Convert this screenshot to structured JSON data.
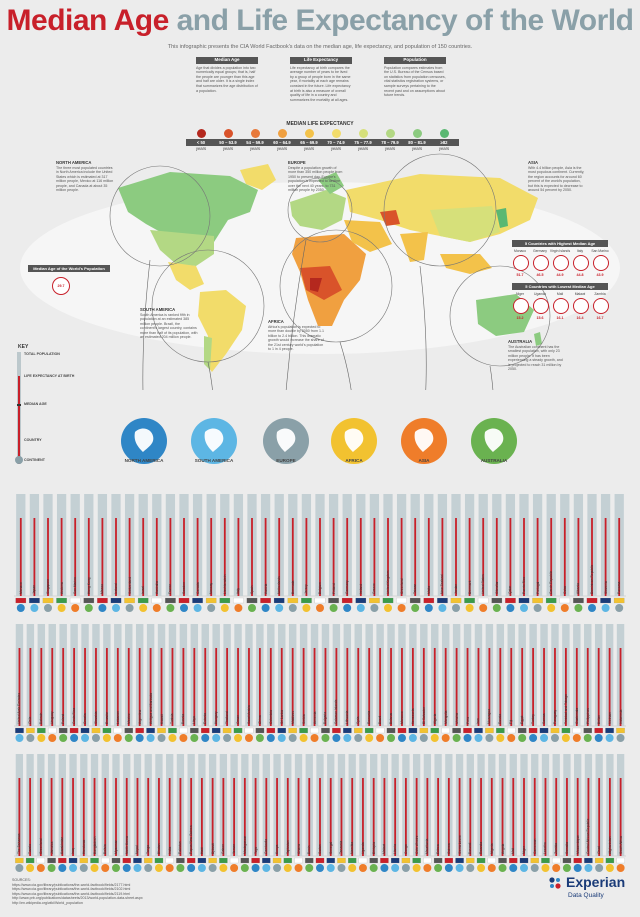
{
  "title_part1": "Median Age",
  "title_part2": "and Life Expectancy of the World",
  "intro": "This infographic presents the CIA World Factbook's data on the median age, life expectancy, and population of 150 countries.",
  "definitions": [
    {
      "heading": "Median Age",
      "text": "Age that divides a population into two numerically equal groups; that is, half the people are younger than this age and half are older. It is a single index that summarizes the age distribution of a population."
    },
    {
      "heading": "Life Expectancy",
      "text": "Life expectancy at birth compares the average number of years to be lived by a group of people born in the same year, if mortality at each age remains constant in the future. Life expectancy at birth is also a measure of overall quality of life in a country and summarizes the mortality at all ages."
    },
    {
      "heading": "Population",
      "text": "Population compares estimates from the U.S. Bureau of the Census based on statistics from population censuses, vital statistics registration systems, or sample surveys pertaining to the recent past and on assumptions about future trends."
    }
  ],
  "legend": {
    "title": "MEDIAN LIFE EXPECTANCY",
    "items": [
      {
        "label": "< 50",
        "unit": "years",
        "color": "#b4281e"
      },
      {
        "label": "50 – 53.9",
        "unit": "years",
        "color": "#d9532a"
      },
      {
        "label": "54 – 59.9",
        "unit": "years",
        "color": "#e8793a"
      },
      {
        "label": "60 – 64.9",
        "unit": "years",
        "color": "#f0a040"
      },
      {
        "label": "65 – 69.9",
        "unit": "years",
        "color": "#f3c24a"
      },
      {
        "label": "70 – 74.9",
        "unit": "years",
        "color": "#f2dc6a"
      },
      {
        "label": "75 – 77.9",
        "unit": "years",
        "color": "#d6e07a"
      },
      {
        "label": "78 – 79.9",
        "unit": "years",
        "color": "#b3d884"
      },
      {
        "label": "80 – 81.9",
        "unit": "years",
        "color": "#8ccb80"
      },
      {
        "label": "≥82",
        "unit": "years",
        "color": "#5ab872"
      }
    ]
  },
  "regions": {
    "north_america": {
      "title": "NORTH AMERICA",
      "text": "The three most populated countries in North America include the United States which is estimated at 317 million people, Mexico at 116 million people, and Canada at about 35 million people."
    },
    "europe": {
      "title": "EUROPE",
      "text": "Despite a population growth of more than 350 million people from 1950 to present day, Europe's population is expected to decline over the next 40 years, to 731 million people by 2050."
    },
    "asia": {
      "title": "ASIA",
      "text": "With 4.4 billion people, Asia is the most populous continent. Currently, the region accounts for around 60 percent of the world's population, but this is expected to decrease to around 54 percent by 2050."
    },
    "south_america": {
      "title": "SOUTH AMERICA",
      "text": "South America is ranked fifth in population at an estimated 385 million people. Brazil, the continent's largest country, contains more than half of its population, with an estimated 204 million people."
    },
    "africa": {
      "title": "AFRICA",
      "text": "Africa's population is expected to more than double by 2050 from 1.1 billion to 2.4 billion. This dramatic growth would increase the share of the 21st century world's population to 1 in 4 people."
    },
    "australia": {
      "title": "AUSTRALIA",
      "text": "The Australian continent has the smallest population, with only 23 million people. It has been experiencing a steady growth, and is projected to reach 31 million by 2050."
    }
  },
  "world_median": {
    "label": "Median Age of the World's Population",
    "value": "29.7"
  },
  "highest_median": {
    "title": "5 Countries with Highest Median Age",
    "countries": [
      {
        "name": "Monaco",
        "value": "51.7"
      },
      {
        "name": "Germany",
        "value": "46.5"
      },
      {
        "name": "Virgin Islands",
        "value": "44.9"
      },
      {
        "name": "Italy",
        "value": "44.8"
      },
      {
        "name": "San Marino",
        "value": "43.9"
      }
    ]
  },
  "lowest_median": {
    "title": "5 Countries with Lowest Median Age",
    "countries": [
      {
        "name": "Niger",
        "value": "15.2"
      },
      {
        "name": "Uganda",
        "value": "15.6"
      },
      {
        "name": "Mali",
        "value": "16.1"
      },
      {
        "name": "Malawi",
        "value": "16.4"
      },
      {
        "name": "Zambia",
        "value": "16.7"
      }
    ]
  },
  "continents": [
    {
      "name": "NORTH AMERICA",
      "color": "#2f86c6"
    },
    {
      "name": "SOUTH AMERICA",
      "color": "#5db6e4"
    },
    {
      "name": "EUROPE",
      "color": "#8aa0a8"
    },
    {
      "name": "AFRICA",
      "color": "#f2c230"
    },
    {
      "name": "ASIA",
      "color": "#ef7d2a"
    },
    {
      "name": "AUSTRALIA",
      "color": "#6ab250"
    }
  ],
  "key": {
    "title": "KEY",
    "items": [
      "TOTAL POPULATION",
      "LIFE EXPECTANCY AT BIRTH",
      "MEDIAN AGE",
      "COUNTRY",
      "CONTINENT"
    ]
  },
  "chart_data": [
    {
      "type": "bar",
      "countries": [
        "Monaco",
        "Japan",
        "Singapore",
        "Andorra",
        "San Marino",
        "Hong Kong",
        "Macau",
        "Iceland",
        "Switzerland",
        "Israel",
        "Australia",
        "France",
        "Sweden",
        "Canada",
        "Norway",
        "Liechtenstein",
        "Italy",
        "Spain",
        "Austria",
        "Netherlands",
        "Bermuda",
        "Jersey",
        "Belgium",
        "Finland",
        "Germany",
        "Ireland",
        "Greece",
        "United Kingdom",
        "Greenland",
        "Taiwan",
        "Malta",
        "New Zealand",
        "Jordan",
        "Denmark",
        "United States",
        "Gibraltar",
        "Qatar",
        "Puerto Rico",
        "Portugal",
        "Czech Republic",
        "Cuba",
        "Albania",
        "Dominican Republic",
        "Slovenia",
        "Panama"
      ]
    },
    {
      "type": "bar",
      "countries": [
        "United Arab Emirates",
        "Chile",
        "Bahrain",
        "Uruguay",
        "Poland",
        "Costa Rica",
        "Croatia",
        "Slovakia",
        "Ecuador",
        "Lebanon",
        "Mexico",
        "Argentina",
        "Antigua and Barbuda",
        "Kuwait",
        "Tunisia",
        "Bosnia",
        "Libya",
        "Estonia",
        "Hungary",
        "Thailand",
        "Oman",
        "Saudi Arabia",
        "China",
        "Colombia",
        "Sri Lanka",
        "Maldives",
        "Serbia",
        "Armenia",
        "Bulgaria",
        "Solomon Islands",
        "Lithuania",
        "Syria",
        "Romania",
        "Brazil",
        "Belarus",
        "Morocco",
        "Venezuela",
        "El Salvador",
        "Algeria",
        "Mongolia",
        "Ukraine",
        "Peru",
        "Iran",
        "Nicaragua",
        "Russia",
        "Fiji",
        "Egypt",
        "Turkey",
        "Samoa",
        "Paraguay",
        "Trinidad and Tobago",
        "Guatemala",
        "Philippines",
        "Belize",
        "Vietnam",
        "Indonesia"
      ]
    },
    {
      "type": "bar",
      "countries": [
        "The Bahamas",
        "Tuvalu",
        "Greenland",
        "Jamaica",
        "Kazakhstan",
        "Iraq",
        "Honduras",
        "Bangladesh",
        "Bolivia",
        "Myanmar",
        "North Korea",
        "Nepal",
        "Tonga",
        "Bhutan",
        "India",
        "Pakistan",
        "Papua New Guinea",
        "Haiti",
        "Djibouti",
        "Gabon",
        "Yemen",
        "Madagascar",
        "Togo",
        "Cambodia",
        "Kenya",
        "Tajikistan",
        "Ghana",
        "Benin",
        "Sudan",
        "Senegal",
        "Tanzania",
        "Namibia",
        "Uganda",
        "Ethiopia",
        "Malawi",
        "Liberia",
        "Congo",
        "Cote d'Ivoire",
        "Mauritania",
        "Eritrea",
        "Guinea",
        "Sierra Leone",
        "Burundi",
        "Rwanda",
        "Nigeria",
        "Angola",
        "Mali",
        "Niger",
        "Cameroon",
        "Lesotho",
        "Zambia",
        "Somalia",
        "Mozambique",
        "Central African Republic",
        "Chad",
        "Afghanistan",
        "South Africa"
      ]
    }
  ],
  "sources": {
    "label": "SOURCES:",
    "lines": [
      "https://www.cia.gov/library/publications/the-world-factbook/fields/2177.html",
      "https://www.cia.gov/library/publications/the-world-factbook/fields/2102.html",
      "https://www.cia.gov/library/publications/the-world-factbook/fields/2119.html",
      "http://www.prb.org/publications/datasheets/2013/world-population-data-sheet.aspx",
      "http://en.wikipedia.org/wiki/World_population"
    ]
  },
  "brand": {
    "name": "Experian",
    "sub": "Data Quality",
    "color": "#1a3b78"
  }
}
